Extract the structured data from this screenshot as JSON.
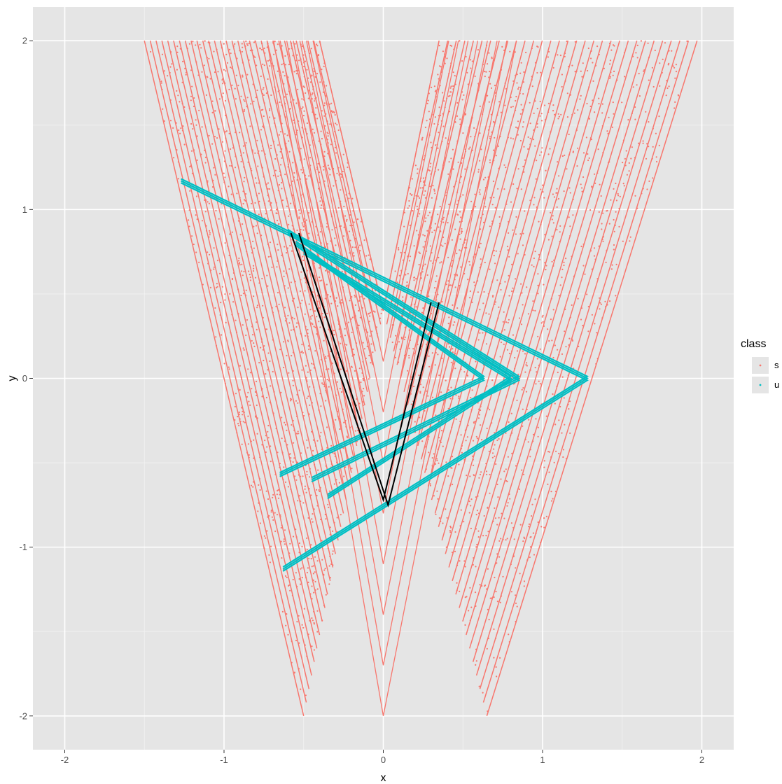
{
  "chart_data": {
    "type": "scatter",
    "title": "",
    "xlabel": "x",
    "ylabel": "y",
    "xlim": [
      -2.2,
      2.2
    ],
    "ylim": [
      -2.2,
      2.2
    ],
    "x_ticks": [
      -2,
      -1,
      0,
      1,
      2
    ],
    "y_ticks": [
      2,
      1,
      0,
      -1,
      -2
    ],
    "x_tick_labels": [
      "-2",
      "-1",
      "0",
      "1",
      "2"
    ],
    "y_tick_labels": [
      "2",
      "1",
      "0",
      "-1",
      "-2"
    ],
    "grid": true,
    "background": "#e5e5e5",
    "legend": {
      "title": "class",
      "position": "right",
      "entries": [
        {
          "label": "s",
          "color": "#f8766d"
        },
        {
          "label": "u",
          "color": "#00bfc4"
        }
      ]
    },
    "series": [
      {
        "name": "s",
        "color": "#f8766d",
        "description_of_shape": "V-shaped band of parallel line segments",
        "outer_left_arm": {
          "top": [
            -1.5,
            2.0
          ],
          "bottom": [
            -0.5,
            -2.0
          ]
        },
        "outer_right_arm": {
          "top": [
            1.97,
            2.0
          ],
          "bottom": [
            0.65,
            -2.0
          ]
        },
        "inner_left_arm": {
          "top": [
            -0.4,
            2.0
          ],
          "bottom": [
            0.0,
            0.4
          ]
        },
        "inner_right_arm": {
          "top": [
            0.35,
            2.0
          ],
          "bottom": [
            0.0,
            0.4
          ]
        },
        "vertex": [
          0.0,
          -2.0
        ]
      },
      {
        "name": "u",
        "color": "#00bfc4",
        "polylines": [
          [
            [
              -1.27,
              1.17
            ],
            [
              1.28,
              0.0
            ],
            [
              -0.63,
              -1.13
            ]
          ],
          [
            [
              -0.6,
              0.87
            ],
            [
              0.85,
              0.0
            ],
            [
              -0.45,
              -0.6
            ]
          ],
          [
            [
              -0.55,
              0.8
            ],
            [
              0.63,
              0.0
            ],
            [
              -0.65,
              -0.57
            ]
          ],
          [
            [
              -0.5,
              0.75
            ],
            [
              0.8,
              0.0
            ],
            [
              -0.35,
              -0.7
            ]
          ]
        ]
      }
    ],
    "highlight": {
      "color": "#000000",
      "polylines": [
        [
          [
            -0.58,
            0.86
          ],
          [
            0.0,
            -0.72
          ],
          [
            0.3,
            0.45
          ]
        ],
        [
          [
            -0.53,
            0.86
          ],
          [
            0.03,
            -0.75
          ],
          [
            0.35,
            0.45
          ]
        ]
      ]
    }
  }
}
